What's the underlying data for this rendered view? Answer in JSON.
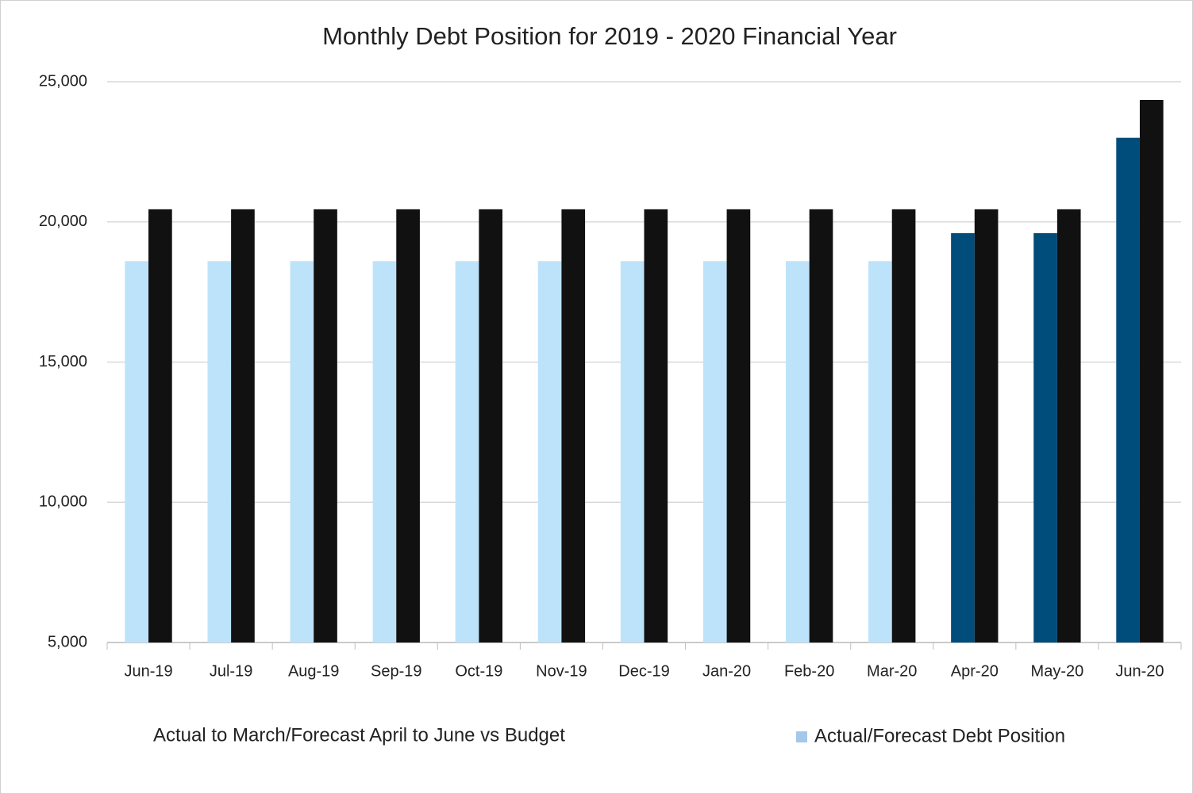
{
  "chart_data": {
    "type": "bar",
    "title": "Monthly Debt Position for 2019 - 2020 Financial Year",
    "subtitle": "Actual to March/Forecast April to June vs Budget",
    "categories": [
      "Jun-19",
      "Jul-19",
      "Aug-19",
      "Sep-19",
      "Oct-19",
      "Nov-19",
      "Dec-19",
      "Jan-20",
      "Feb-20",
      "Mar-20",
      "Apr-20",
      "May-20",
      "Jun-20"
    ],
    "series": [
      {
        "name": "Actual/Forecast Debt Position",
        "color": "#a4c8ea",
        "colors": [
          "#bde3fa",
          "#bde3fa",
          "#bde3fa",
          "#bde3fa",
          "#bde3fa",
          "#bde3fa",
          "#bde3fa",
          "#bde3fa",
          "#bde3fa",
          "#bde3fa",
          "#004c7a",
          "#004c7a",
          "#004c7a"
        ],
        "values": [
          18600,
          18600,
          18600,
          18600,
          18600,
          18600,
          18600,
          18600,
          18600,
          18600,
          19600,
          19600,
          23000
        ]
      },
      {
        "color": "#111111",
        "values": [
          20450,
          20450,
          20450,
          20450,
          20450,
          20450,
          20450,
          20450,
          20450,
          20450,
          20450,
          20450,
          24350
        ]
      }
    ],
    "ylim": [
      5000,
      25000
    ],
    "yticks": [
      {
        "value": 5000,
        "label": "5,000"
      },
      {
        "value": 10000,
        "label": "10,000"
      },
      {
        "value": 15000,
        "label": "15,000"
      },
      {
        "value": 20000,
        "label": "20,000"
      },
      {
        "value": 25000,
        "label": "25,000"
      }
    ],
    "grid": true,
    "legend": "bottom-right"
  }
}
